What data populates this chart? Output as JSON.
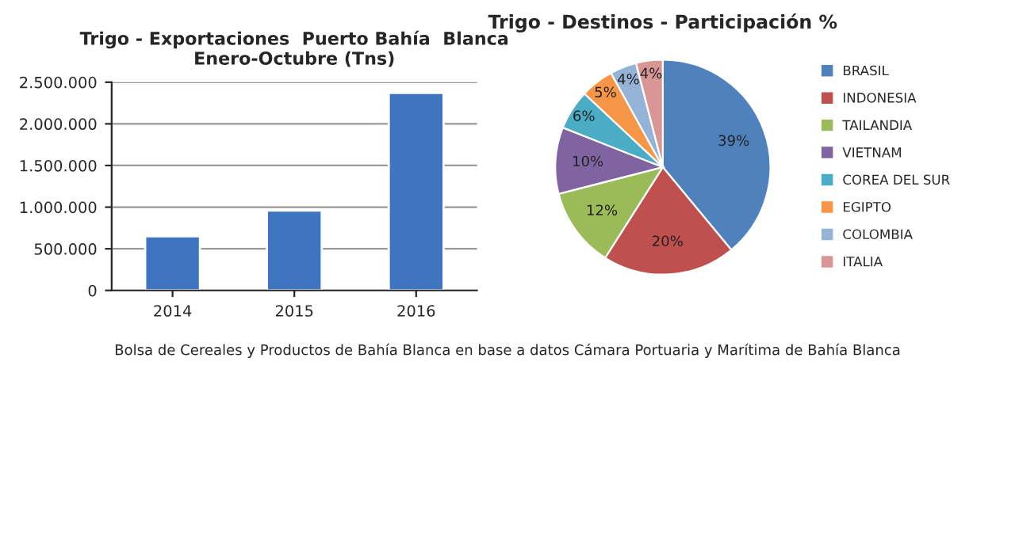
{
  "chart_data": [
    {
      "type": "bar",
      "title": "Trigo - Exportaciones  Puerto Bahía  Blanca\nEnero-Octubre (Tns)",
      "categories": [
        "2014",
        "2015",
        "2016"
      ],
      "values": [
        650000,
        960000,
        2370000
      ],
      "color": "#3f74c0",
      "ylim": [
        0,
        2500000
      ],
      "yticks": [
        {
          "value": 0,
          "label": "0"
        },
        {
          "value": 500000,
          "label": "500.000"
        },
        {
          "value": 1000000,
          "label": "1.000.000"
        },
        {
          "value": 1500000,
          "label": "1.500.000"
        },
        {
          "value": 2000000,
          "label": "2.000.000"
        },
        {
          "value": 2500000,
          "label": "2.500.000"
        }
      ],
      "grid": "y",
      "annotations": [
        "Bolsa de Cereales y Productos de Bahía Blanca en base a datos Cámara Portuaria y Marítima de Bahía Blanca"
      ]
    },
    {
      "type": "pie",
      "title": "Trigo - Destinos - Participación %",
      "categories": [
        "BRASIL",
        "INDONESIA",
        "TAILANDIA",
        "VIETNAM",
        "COREA DEL SUR",
        "EGIPTO",
        "COLOMBIA",
        "ITALIA"
      ],
      "values": [
        39,
        20,
        12,
        10,
        6,
        5,
        4,
        4
      ],
      "colors": [
        "#4f81bd",
        "#c0504d",
        "#9bbb59",
        "#8064a2",
        "#4bacc6",
        "#f79646",
        "#95b3d7",
        "#d99694"
      ],
      "value_labels": [
        "39%",
        "20%",
        "12%",
        "10%",
        "6%",
        "5%",
        "4%",
        "4%"
      ],
      "legend": "right"
    }
  ]
}
